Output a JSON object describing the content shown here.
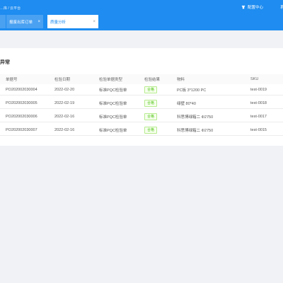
{
  "header": {
    "breadcrumb": "…库 / 云平台",
    "config_center": "配置中心",
    "more": "系"
  },
  "tabs": [
    {
      "label": ""
    },
    {
      "label": "报废出库订单",
      "close": "×"
    },
    {
      "label": "质量分析",
      "close": "×"
    }
  ],
  "panel": {
    "title": "异常",
    "columns": [
      "单据号",
      "检验日期",
      "检验单据类型",
      "检验结果",
      "物料",
      "SKU"
    ],
    "rows": [
      [
        "PO202002030004",
        "2022-02-20",
        "标准PQC检验单",
        "合格",
        "PC板 3*1200 PC",
        "test-0019"
      ],
      [
        "PO202002030005",
        "2022-02-19",
        "标准PQC检验单",
        "合格",
        "绿壁 80*40",
        "test-0018"
      ],
      [
        "PO202002030006",
        "2022-02-16",
        "标准PQC检验单",
        "合格",
        "科思博绿箱二 Φ2750",
        "test-0017"
      ],
      [
        "PO202002030007",
        "2022-02-16",
        "标准PQC检验单",
        "合格",
        "科思博绿箱二 Φ2750",
        "test-0015"
      ]
    ]
  },
  "colors": {
    "header_blue": "#1e8cf0",
    "pass_green": "#52c41a"
  }
}
